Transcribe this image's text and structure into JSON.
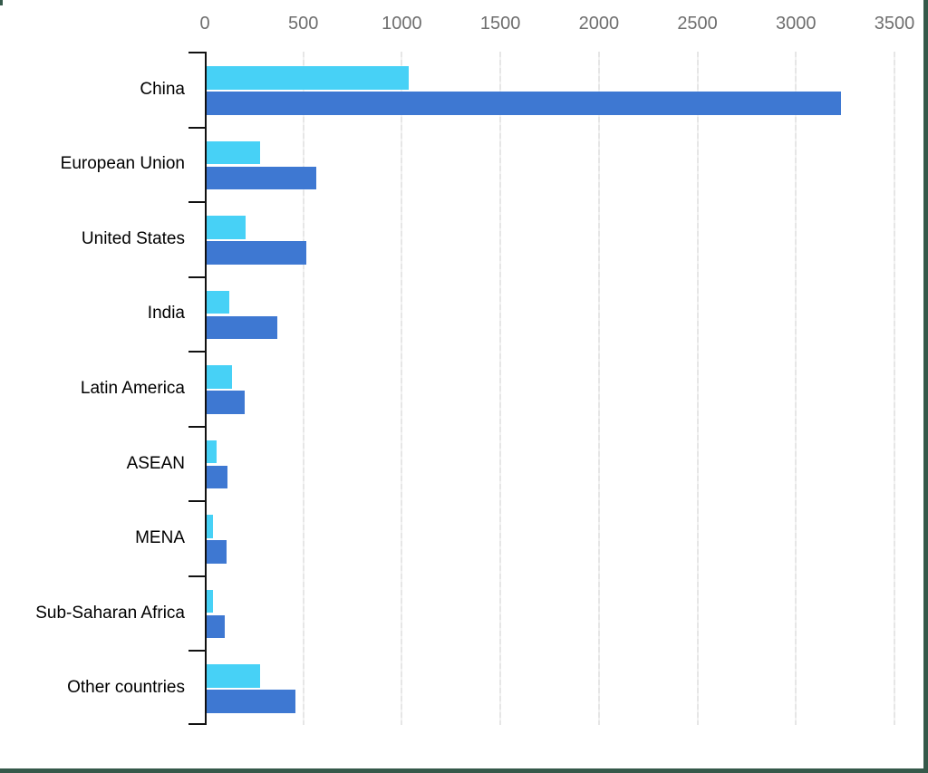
{
  "chart_data": {
    "type": "bar",
    "orientation": "horizontal",
    "title": "",
    "xlabel": "",
    "ylabel": "",
    "value_axis_position": "top",
    "grid": true,
    "legend": false,
    "categories": [
      "China",
      "European Union",
      "United States",
      "India",
      "Latin America",
      "ASEAN",
      "MENA",
      "Sub-Saharan Africa",
      "Other countries"
    ],
    "series": [
      {
        "name": "light-blue-series",
        "color": "#47d1f6",
        "values": [
          1025,
          270,
          200,
          115,
          130,
          50,
          30,
          30,
          270
        ]
      },
      {
        "name": "dark-blue-series",
        "color": "#3e78d2",
        "values": [
          3220,
          555,
          505,
          360,
          195,
          105,
          100,
          90,
          450
        ]
      }
    ],
    "x_axis": {
      "min": 0,
      "max": 3500,
      "tick_interval": 500,
      "tick_labels": [
        "0",
        "500",
        "1000",
        "1500",
        "2000",
        "2500",
        "3000",
        "3500"
      ]
    }
  },
  "style": {
    "bar_color_light": "#47d1f6",
    "bar_color_dark": "#3e78d2",
    "axis_color": "#111111",
    "tick_label_color": "#6f6f6f",
    "category_label_color": "#000000",
    "gridline_color": "#e6e6e6",
    "frame_border_color": "#35594a",
    "background": "#ffffff"
  }
}
